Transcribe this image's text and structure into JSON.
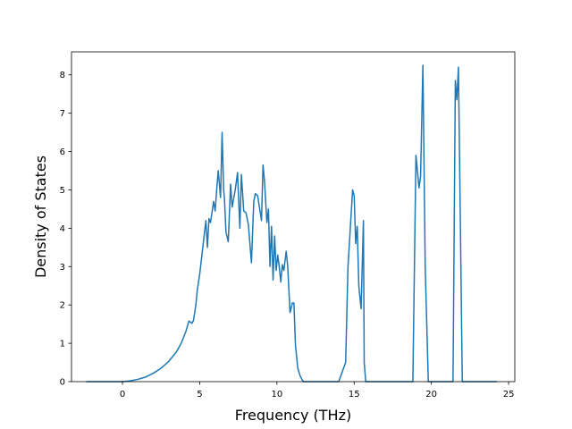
{
  "chart_data": {
    "type": "line",
    "title": "",
    "xlabel": "Frequency (THz)",
    "ylabel": "Density of States",
    "xlim": [
      -3.3,
      25.4
    ],
    "ylim": [
      0,
      8.6
    ],
    "xticks": [
      0,
      5,
      10,
      15,
      20,
      25
    ],
    "yticks": [
      0,
      1,
      2,
      3,
      4,
      5,
      6,
      7,
      8
    ],
    "grid": false,
    "legend": "none",
    "series": [
      {
        "color": "#1f77b4",
        "x": [
          -2.3,
          -1.5,
          -1.0,
          -0.5,
          0.0,
          0.5,
          1.0,
          1.5,
          2.0,
          2.5,
          3.0,
          3.5,
          3.8,
          4.1,
          4.3,
          4.5,
          4.6,
          4.75,
          4.85,
          5.0,
          5.2,
          5.4,
          5.5,
          5.6,
          5.7,
          5.9,
          6.0,
          6.1,
          6.2,
          6.35,
          6.45,
          6.55,
          6.6,
          6.7,
          6.85,
          7.0,
          7.1,
          7.3,
          7.45,
          7.6,
          7.7,
          7.85,
          8.0,
          8.15,
          8.35,
          8.5,
          8.6,
          8.75,
          9.0,
          9.1,
          9.2,
          9.35,
          9.45,
          9.55,
          9.65,
          9.75,
          9.85,
          9.95,
          10.05,
          10.15,
          10.25,
          10.35,
          10.45,
          10.6,
          10.7,
          10.85,
          11.0,
          11.1,
          11.2,
          11.35,
          11.5,
          11.7,
          11.8,
          11.9,
          12.0,
          12.15,
          12.3,
          12.5,
          13.0,
          14.0,
          14.45,
          14.6,
          14.9,
          15.0,
          15.1,
          15.2,
          15.3,
          15.45,
          15.6,
          15.65,
          15.75,
          16.0,
          17.0,
          18.0,
          18.8,
          19.0,
          19.2,
          19.3,
          19.45,
          19.6,
          19.8,
          20.0,
          21.0,
          21.4,
          21.55,
          21.65,
          21.75,
          21.85,
          22.0,
          22.2,
          23.0,
          24.2
        ],
        "y": [
          0,
          0,
          0,
          0,
          0,
          0.02,
          0.06,
          0.12,
          0.22,
          0.35,
          0.53,
          0.78,
          1.0,
          1.3,
          1.58,
          1.52,
          1.6,
          2.0,
          2.4,
          2.8,
          3.5,
          4.2,
          3.5,
          4.25,
          4.15,
          4.7,
          4.45,
          5.0,
          5.5,
          4.8,
          6.5,
          5.0,
          4.8,
          3.9,
          3.65,
          5.15,
          4.55,
          5.0,
          5.45,
          4.0,
          5.4,
          4.45,
          4.4,
          4.1,
          3.1,
          4.7,
          4.9,
          4.85,
          4.2,
          5.65,
          5.2,
          4.15,
          4.5,
          3.0,
          4.05,
          2.65,
          3.8,
          2.9,
          3.3,
          3.0,
          2.6,
          3.05,
          2.9,
          3.4,
          3.0,
          1.8,
          2.05,
          2.05,
          0.95,
          0.35,
          0.15,
          0,
          0,
          0,
          0,
          0,
          0,
          0,
          0,
          0,
          0.5,
          3.0,
          5.0,
          4.85,
          3.6,
          4.05,
          2.5,
          1.9,
          4.2,
          0.5,
          0,
          0,
          0,
          0,
          0,
          5.9,
          5.05,
          5.35,
          8.25,
          3.0,
          0,
          0,
          0,
          0,
          7.85,
          7.35,
          8.2,
          5.0,
          0,
          0,
          0,
          0
        ]
      }
    ]
  }
}
